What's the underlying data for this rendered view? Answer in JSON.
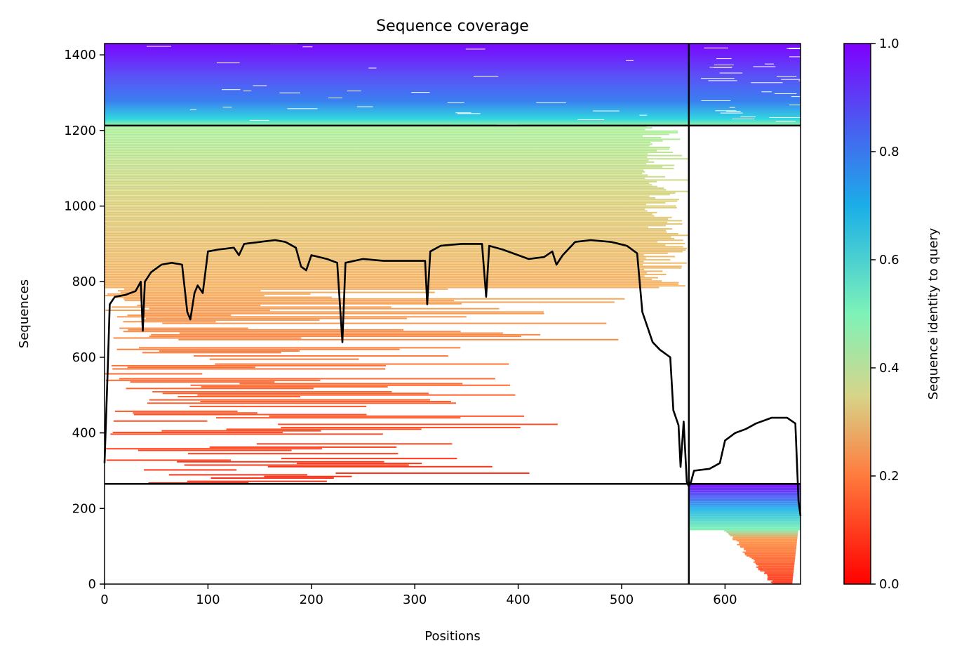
{
  "chart_data": {
    "type": "heatmap",
    "title": "Sequence coverage",
    "xlabel": "Positions",
    "ylabel": "Sequences",
    "xlim": [
      0,
      673
    ],
    "ylim": [
      0,
      1430
    ],
    "xticks": [
      0,
      100,
      200,
      300,
      400,
      500,
      600
    ],
    "yticks": [
      0,
      200,
      400,
      600,
      800,
      1000,
      1200,
      1400
    ],
    "grid": false,
    "colorbar": {
      "label": "Sequence identity to query",
      "colormap": "rainbow_r",
      "range": [
        0.0,
        1.0
      ],
      "ticks": [
        "0.0",
        "0.2",
        "0.4",
        "0.6",
        "0.8",
        "1.0"
      ],
      "colors": [
        "#ff0000",
        "#ff7a3d",
        "#d6d58a",
        "#7ef2b8",
        "#1aaee8",
        "#4a5cf0",
        "#7f00ff"
      ]
    },
    "chain_boundaries": {
      "x": [
        565
      ],
      "y": [
        265,
        1213
      ]
    },
    "blocks": [
      {
        "name": "paired-chain-A",
        "x_range": [
          0,
          565
        ],
        "y_range": [
          1213,
          1430
        ],
        "identity_range": [
          0.45,
          1.0
        ]
      },
      {
        "name": "paired-chain-B",
        "x_range": [
          565,
          673
        ],
        "y_range": [
          1213,
          1430
        ],
        "identity_range": [
          0.45,
          1.0
        ]
      },
      {
        "name": "unpaired-chain-A",
        "x_range": [
          0,
          565
        ],
        "y_range": [
          265,
          1213
        ],
        "identity_range": [
          0.0,
          0.45
        ]
      },
      {
        "name": "unpaired-chain-B",
        "x_range": [
          565,
          673
        ],
        "y_range": [
          0,
          265
        ],
        "identity_range": [
          0.0,
          1.0
        ]
      }
    ],
    "coverage_line": {
      "color": "#000000",
      "points": [
        [
          0,
          320
        ],
        [
          3,
          560
        ],
        [
          5,
          740
        ],
        [
          10,
          760
        ],
        [
          20,
          765
        ],
        [
          30,
          775
        ],
        [
          35,
          800
        ],
        [
          37,
          670
        ],
        [
          39,
          800
        ],
        [
          45,
          825
        ],
        [
          55,
          845
        ],
        [
          65,
          850
        ],
        [
          75,
          845
        ],
        [
          80,
          720
        ],
        [
          83,
          700
        ],
        [
          87,
          770
        ],
        [
          90,
          790
        ],
        [
          95,
          770
        ],
        [
          100,
          880
        ],
        [
          110,
          885
        ],
        [
          125,
          890
        ],
        [
          130,
          870
        ],
        [
          135,
          900
        ],
        [
          150,
          905
        ],
        [
          165,
          910
        ],
        [
          175,
          905
        ],
        [
          185,
          890
        ],
        [
          190,
          840
        ],
        [
          195,
          830
        ],
        [
          200,
          870
        ],
        [
          215,
          860
        ],
        [
          225,
          850
        ],
        [
          230,
          640
        ],
        [
          233,
          850
        ],
        [
          250,
          860
        ],
        [
          270,
          855
        ],
        [
          290,
          855
        ],
        [
          310,
          855
        ],
        [
          312,
          740
        ],
        [
          315,
          880
        ],
        [
          325,
          895
        ],
        [
          345,
          900
        ],
        [
          365,
          900
        ],
        [
          369,
          760
        ],
        [
          372,
          895
        ],
        [
          385,
          885
        ],
        [
          400,
          870
        ],
        [
          410,
          860
        ],
        [
          425,
          865
        ],
        [
          433,
          880
        ],
        [
          437,
          845
        ],
        [
          443,
          870
        ],
        [
          455,
          905
        ],
        [
          470,
          910
        ],
        [
          490,
          905
        ],
        [
          505,
          895
        ],
        [
          515,
          875
        ],
        [
          520,
          720
        ],
        [
          530,
          640
        ],
        [
          537,
          620
        ],
        [
          547,
          600
        ],
        [
          550,
          460
        ],
        [
          555,
          420
        ],
        [
          557,
          310
        ],
        [
          560,
          430
        ],
        [
          563,
          270
        ],
        [
          565,
          258
        ],
        [
          567,
          270
        ],
        [
          570,
          300
        ],
        [
          585,
          305
        ],
        [
          595,
          320
        ],
        [
          600,
          380
        ],
        [
          610,
          400
        ],
        [
          620,
          410
        ],
        [
          630,
          425
        ],
        [
          645,
          440
        ],
        [
          660,
          440
        ],
        [
          668,
          425
        ],
        [
          671,
          220
        ],
        [
          673,
          180
        ]
      ]
    }
  }
}
